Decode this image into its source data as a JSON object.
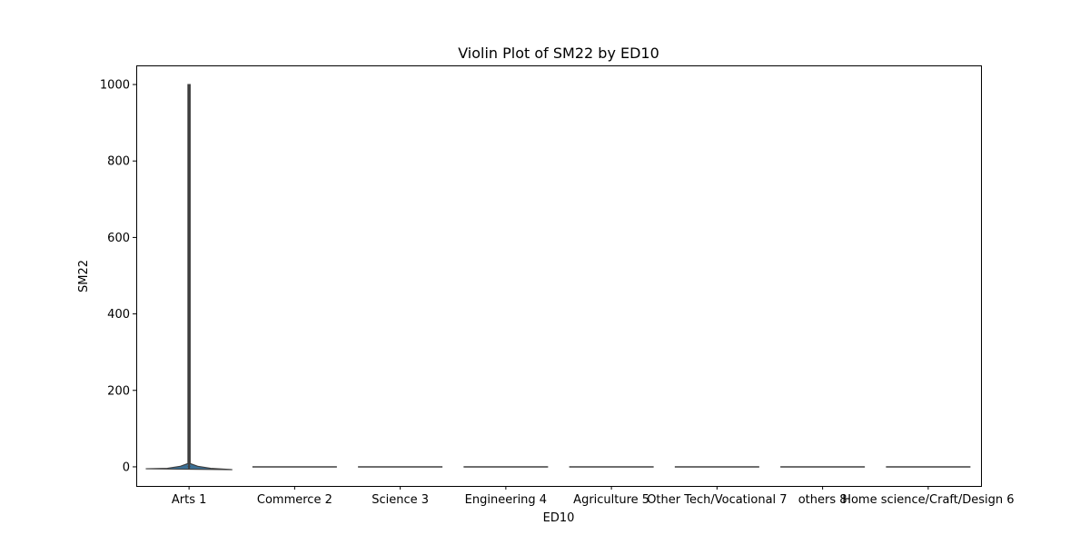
{
  "chart_data": {
    "type": "violin",
    "title": "Violin Plot of SM22 by ED10",
    "xlabel": "ED10",
    "ylabel": "SM22",
    "ylim": [
      -50,
      1050
    ],
    "yticks": [
      0,
      200,
      400,
      600,
      800,
      1000
    ],
    "grid": false,
    "categories": [
      "Arts 1",
      "Commerce 2",
      "Science 3",
      "Engineering 4",
      "Agriculture 5",
      "Other Tech/Vocational 7",
      "others 8",
      "Home science/Craft/Design 6"
    ],
    "violins": [
      {
        "category": "Arts 1",
        "min": -5,
        "q1": 0,
        "median": 0,
        "q3": 2,
        "max": 1000,
        "peak_width": 0.82
      },
      {
        "category": "Commerce 2",
        "min": 0,
        "q1": 0,
        "median": 0,
        "q3": 0,
        "max": 0,
        "peak_width": 0.8
      },
      {
        "category": "Science 3",
        "min": 0,
        "q1": 0,
        "median": 0,
        "q3": 0,
        "max": 0,
        "peak_width": 0.8
      },
      {
        "category": "Engineering 4",
        "min": 0,
        "q1": 0,
        "median": 0,
        "q3": 0,
        "max": 0,
        "peak_width": 0.8
      },
      {
        "category": "Agriculture 5",
        "min": 0,
        "q1": 0,
        "median": 0,
        "q3": 0,
        "max": 0,
        "peak_width": 0.8
      },
      {
        "category": "Other Tech/Vocational 7",
        "min": 0,
        "q1": 0,
        "median": 0,
        "q3": 0,
        "max": 0,
        "peak_width": 0.8
      },
      {
        "category": "others 8",
        "min": 0,
        "q1": 0,
        "median": 0,
        "q3": 0,
        "max": 0,
        "peak_width": 0.8
      },
      {
        "category": "Home science/Craft/Design 6",
        "min": 0,
        "q1": 0,
        "median": 0,
        "q3": 0,
        "max": 0,
        "peak_width": 0.8
      }
    ],
    "colors": {
      "violin_fill": "#3a6f95",
      "violin_edge": "#3f3f3f",
      "axis": "#000000"
    }
  }
}
